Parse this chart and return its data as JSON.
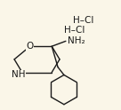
{
  "background_color": "#faf6e8",
  "bond_color": "#1a1a1a",
  "text_color": "#1a1a1a",
  "figsize": [
    1.36,
    1.24
  ],
  "dpi": 100,
  "hcl1_text": "H–Cl",
  "hcl2_text": "H–Cl",
  "nh2_text": "NH₂",
  "o_text": "O",
  "nh_text": "NH",
  "font_size": 7.5,
  "lw": 1.0
}
